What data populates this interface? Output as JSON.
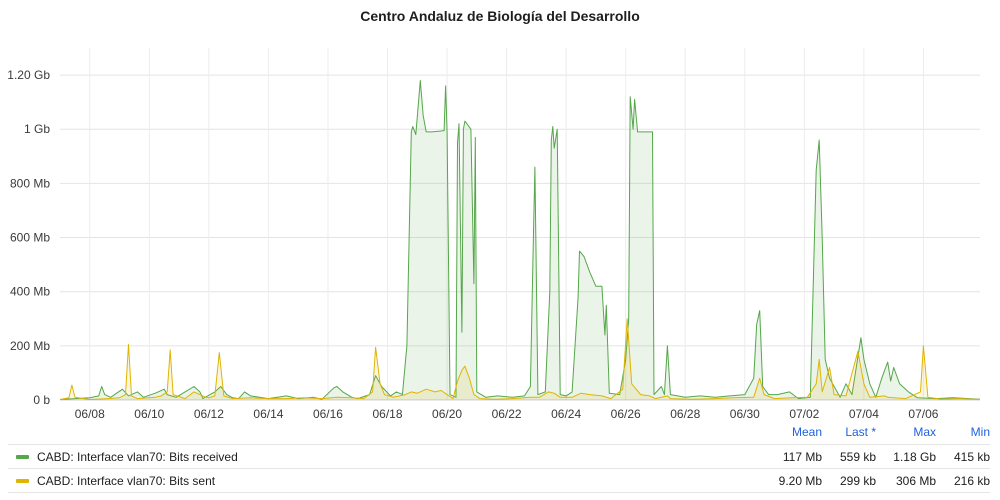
{
  "panel": {
    "title": "Centro Andaluz de Biología del Desarrollo"
  },
  "legend": {
    "headers": [
      "Mean",
      "Last *",
      "Max",
      "Min"
    ],
    "rows": [
      {
        "name": "CABD: Interface vlan70: Bits received",
        "color": "#56a64b",
        "mean": "117 Mb",
        "last": "559 kb",
        "max": "1.18 Gb",
        "min": "415 kb"
      },
      {
        "name": "CABD: Interface vlan70: Bits sent",
        "color": "#e0b400",
        "mean": "9.20 Mb",
        "last": "299 kb",
        "max": "306 Mb",
        "min": "216 kb"
      }
    ]
  },
  "chart_data": {
    "type": "area",
    "x_unit": "day (June 7 = 7, July 1 = 31)",
    "xlim": [
      7,
      37.9
    ],
    "ylim": [
      0,
      1300
    ],
    "y_unit": "Mb",
    "grid": true,
    "y_ticks": [
      {
        "value": 0,
        "label": "0 b"
      },
      {
        "value": 200,
        "label": "200 Mb"
      },
      {
        "value": 400,
        "label": "400 Mb"
      },
      {
        "value": 600,
        "label": "600 Mb"
      },
      {
        "value": 800,
        "label": "800 Mb"
      },
      {
        "value": 1000,
        "label": "1 Gb"
      },
      {
        "value": 1200,
        "label": "1.20 Gb"
      }
    ],
    "x_ticks": [
      {
        "value": 8,
        "label": "06/08"
      },
      {
        "value": 10,
        "label": "06/10"
      },
      {
        "value": 12,
        "label": "06/12"
      },
      {
        "value": 14,
        "label": "06/14"
      },
      {
        "value": 16,
        "label": "06/16"
      },
      {
        "value": 18,
        "label": "06/18"
      },
      {
        "value": 20,
        "label": "06/20"
      },
      {
        "value": 22,
        "label": "06/22"
      },
      {
        "value": 24,
        "label": "06/24"
      },
      {
        "value": 26,
        "label": "06/26"
      },
      {
        "value": 28,
        "label": "06/28"
      },
      {
        "value": 30,
        "label": "06/30"
      },
      {
        "value": 32,
        "label": "07/02"
      },
      {
        "value": 34,
        "label": "07/04"
      },
      {
        "value": 36,
        "label": "07/06"
      }
    ],
    "series": [
      {
        "name": "CABD: Interface vlan70: Bits received",
        "color": "#56a64b",
        "points": [
          [
            7,
            2
          ],
          [
            7.5,
            5
          ],
          [
            8,
            8
          ],
          [
            8.3,
            15
          ],
          [
            8.4,
            50
          ],
          [
            8.5,
            20
          ],
          [
            8.7,
            10
          ],
          [
            9.1,
            40
          ],
          [
            9.3,
            15
          ],
          [
            9.6,
            30
          ],
          [
            9.8,
            10
          ],
          [
            10.2,
            25
          ],
          [
            10.5,
            40
          ],
          [
            10.6,
            20
          ],
          [
            10.9,
            10
          ],
          [
            11.2,
            30
          ],
          [
            11.5,
            50
          ],
          [
            11.7,
            30
          ],
          [
            11.8,
            5
          ],
          [
            12.2,
            30
          ],
          [
            12.4,
            50
          ],
          [
            12.6,
            20
          ],
          [
            12.8,
            8
          ],
          [
            13,
            5
          ],
          [
            13.2,
            30
          ],
          [
            13.4,
            15
          ],
          [
            13.7,
            10
          ],
          [
            14,
            5
          ],
          [
            14.6,
            15
          ],
          [
            15,
            5
          ],
          [
            15.5,
            10
          ],
          [
            15.8,
            3
          ],
          [
            16.2,
            45
          ],
          [
            16.3,
            50
          ],
          [
            16.5,
            30
          ],
          [
            16.8,
            10
          ],
          [
            17,
            5
          ],
          [
            17.4,
            20
          ],
          [
            17.6,
            90
          ],
          [
            17.8,
            50
          ],
          [
            18.1,
            15
          ],
          [
            18.3,
            30
          ],
          [
            18.5,
            20
          ],
          [
            18.65,
            200
          ],
          [
            18.8,
            990
          ],
          [
            18.85,
            1010
          ],
          [
            18.95,
            980
          ],
          [
            19.1,
            1180
          ],
          [
            19.2,
            1050
          ],
          [
            19.3,
            990
          ],
          [
            19.5,
            990
          ],
          [
            19.9,
            995
          ],
          [
            19.95,
            1160
          ],
          [
            20,
            990
          ],
          [
            20.1,
            20
          ],
          [
            20.3,
            10
          ],
          [
            20.35,
            950
          ],
          [
            20.4,
            1020
          ],
          [
            20.5,
            250
          ],
          [
            20.55,
            1000
          ],
          [
            20.6,
            1030
          ],
          [
            20.8,
            1000
          ],
          [
            20.9,
            430
          ],
          [
            20.95,
            970
          ],
          [
            21,
            30
          ],
          [
            21.3,
            10
          ],
          [
            21.7,
            15
          ],
          [
            22.2,
            10
          ],
          [
            22.6,
            15
          ],
          [
            22.8,
            50
          ],
          [
            22.9,
            600
          ],
          [
            22.95,
            860
          ],
          [
            23.05,
            20
          ],
          [
            23.3,
            30
          ],
          [
            23.45,
            400
          ],
          [
            23.5,
            960
          ],
          [
            23.55,
            1010
          ],
          [
            23.6,
            930
          ],
          [
            23.7,
            1000
          ],
          [
            23.8,
            20
          ],
          [
            24,
            15
          ],
          [
            24.2,
            30
          ],
          [
            24.4,
            380
          ],
          [
            24.45,
            550
          ],
          [
            24.6,
            530
          ],
          [
            24.8,
            470
          ],
          [
            25,
            420
          ],
          [
            25.2,
            420
          ],
          [
            25.3,
            240
          ],
          [
            25.35,
            350
          ],
          [
            25.45,
            25
          ],
          [
            25.8,
            20
          ],
          [
            26,
            150
          ],
          [
            26.1,
            300
          ],
          [
            26.15,
            1120
          ],
          [
            26.25,
            1000
          ],
          [
            26.3,
            1110
          ],
          [
            26.4,
            990
          ],
          [
            26.6,
            990
          ],
          [
            26.9,
            990
          ],
          [
            26.95,
            20
          ],
          [
            27.2,
            50
          ],
          [
            27.3,
            20
          ],
          [
            27.4,
            200
          ],
          [
            27.5,
            20
          ],
          [
            28,
            10
          ],
          [
            28.5,
            15
          ],
          [
            29,
            10
          ],
          [
            29.5,
            15
          ],
          [
            30,
            20
          ],
          [
            30.3,
            80
          ],
          [
            30.4,
            280
          ],
          [
            30.5,
            330
          ],
          [
            30.6,
            50
          ],
          [
            30.8,
            20
          ],
          [
            31.1,
            20
          ],
          [
            31.5,
            30
          ],
          [
            31.8,
            5
          ],
          [
            32.2,
            10
          ],
          [
            32.4,
            850
          ],
          [
            32.5,
            960
          ],
          [
            32.6,
            600
          ],
          [
            32.7,
            150
          ],
          [
            32.85,
            80
          ],
          [
            33.2,
            10
          ],
          [
            33.4,
            60
          ],
          [
            33.6,
            20
          ],
          [
            33.9,
            230
          ],
          [
            34,
            150
          ],
          [
            34.2,
            60
          ],
          [
            34.4,
            10
          ],
          [
            34.6,
            80
          ],
          [
            34.8,
            140
          ],
          [
            34.9,
            70
          ],
          [
            35,
            120
          ],
          [
            35.2,
            60
          ],
          [
            35.5,
            30
          ],
          [
            35.8,
            8
          ],
          [
            36.4,
            5
          ],
          [
            37,
            8
          ],
          [
            37.9,
            3
          ]
        ]
      },
      {
        "name": "CABD: Interface vlan70: Bits sent",
        "color": "#e0b400",
        "points": [
          [
            7,
            2
          ],
          [
            7.3,
            8
          ],
          [
            7.4,
            55
          ],
          [
            7.5,
            10
          ],
          [
            8,
            2
          ],
          [
            8.6,
            5
          ],
          [
            9,
            8
          ],
          [
            9.2,
            20
          ],
          [
            9.3,
            205
          ],
          [
            9.4,
            15
          ],
          [
            9.6,
            5
          ],
          [
            10.2,
            10
          ],
          [
            10.4,
            15
          ],
          [
            10.6,
            30
          ],
          [
            10.7,
            185
          ],
          [
            10.8,
            20
          ],
          [
            11.2,
            5
          ],
          [
            11.5,
            30
          ],
          [
            11.7,
            20
          ],
          [
            11.9,
            10
          ],
          [
            12,
            8
          ],
          [
            12.2,
            15
          ],
          [
            12.35,
            175
          ],
          [
            12.5,
            15
          ],
          [
            12.8,
            5
          ],
          [
            13.4,
            8
          ],
          [
            14,
            5
          ],
          [
            14.6,
            5
          ],
          [
            15.2,
            8
          ],
          [
            15.8,
            5
          ],
          [
            16.3,
            10
          ],
          [
            16.8,
            8
          ],
          [
            17.2,
            5
          ],
          [
            17.5,
            30
          ],
          [
            17.6,
            195
          ],
          [
            17.75,
            60
          ],
          [
            17.9,
            20
          ],
          [
            18.2,
            10
          ],
          [
            18.6,
            20
          ],
          [
            18.8,
            30
          ],
          [
            19,
            25
          ],
          [
            19.3,
            40
          ],
          [
            19.6,
            30
          ],
          [
            19.8,
            35
          ],
          [
            20,
            20
          ],
          [
            20.2,
            5
          ],
          [
            20.35,
            70
          ],
          [
            20.5,
            110
          ],
          [
            20.6,
            125
          ],
          [
            20.75,
            80
          ],
          [
            20.9,
            20
          ],
          [
            21.1,
            5
          ],
          [
            21.6,
            3
          ],
          [
            22.2,
            5
          ],
          [
            22.8,
            10
          ],
          [
            23.1,
            10
          ],
          [
            23.4,
            30
          ],
          [
            23.6,
            25
          ],
          [
            23.8,
            10
          ],
          [
            24.2,
            10
          ],
          [
            24.5,
            25
          ],
          [
            24.8,
            20
          ],
          [
            25.2,
            15
          ],
          [
            25.5,
            5
          ],
          [
            25.9,
            40
          ],
          [
            26.05,
            300
          ],
          [
            26.2,
            60
          ],
          [
            26.5,
            20
          ],
          [
            26.8,
            15
          ],
          [
            27,
            5
          ],
          [
            27.4,
            15
          ],
          [
            27.5,
            5
          ],
          [
            28.2,
            3
          ],
          [
            29,
            5
          ],
          [
            29.6,
            8
          ],
          [
            30.3,
            10
          ],
          [
            30.5,
            80
          ],
          [
            30.65,
            20
          ],
          [
            31,
            5
          ],
          [
            31.6,
            8
          ],
          [
            32.1,
            10
          ],
          [
            32.4,
            60
          ],
          [
            32.5,
            150
          ],
          [
            32.6,
            30
          ],
          [
            32.85,
            120
          ],
          [
            33,
            20
          ],
          [
            33.4,
            15
          ],
          [
            33.8,
            180
          ],
          [
            34,
            60
          ],
          [
            34.2,
            10
          ],
          [
            34.7,
            15
          ],
          [
            34.8,
            10
          ],
          [
            35.4,
            5
          ],
          [
            35.9,
            30
          ],
          [
            36,
            200
          ],
          [
            36.15,
            10
          ],
          [
            36.6,
            3
          ],
          [
            37.2,
            5
          ],
          [
            37.9,
            2
          ]
        ]
      }
    ]
  }
}
